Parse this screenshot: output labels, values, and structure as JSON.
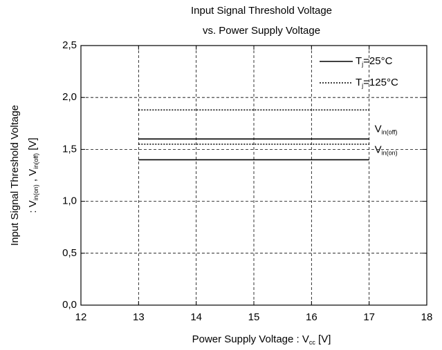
{
  "chart_data": {
    "type": "line",
    "title": [
      "Input Signal Threshold Voltage",
      "vs. Power Supply Voltage"
    ],
    "xlabel": [
      "Power Supply Voltage : V",
      "cc",
      " [V]"
    ],
    "ylabel": [
      "Input Signal Threshold Voltage",
      [
        ": V",
        "in(on)",
        " , V",
        "in(off)",
        " [V]"
      ]
    ],
    "x": [
      13,
      17
    ],
    "series": [
      {
        "name": [
          "T",
          "j",
          "=25°C"
        ],
        "color": "#000000",
        "linestyle": "solid",
        "lines": [
          {
            "values": [
              1.4,
              1.4
            ]
          },
          {
            "values": [
              1.6,
              1.6
            ]
          }
        ]
      },
      {
        "name": [
          "T",
          "j",
          "=125°C"
        ],
        "color": "#000000",
        "linestyle": "dotted",
        "lines": [
          {
            "values": [
              1.55,
              1.55
            ]
          },
          {
            "values": [
              1.88,
              1.88
            ]
          }
        ]
      }
    ],
    "annotations": [
      [
        "V",
        "in(off)"
      ],
      [
        "V",
        "in(on)"
      ]
    ],
    "xlim": [
      12,
      18
    ],
    "xticks": [
      12,
      13,
      14,
      15,
      16,
      17,
      18
    ],
    "ylim": [
      0,
      2.5
    ],
    "yticks": [
      {
        "value": 0,
        "label": "0,0"
      },
      {
        "value": 0.5,
        "label": "0,5"
      },
      {
        "value": 1,
        "label": "1,0"
      },
      {
        "value": 1.5,
        "label": "1,5"
      },
      {
        "value": 2,
        "label": "2,0"
      },
      {
        "value": 2.5,
        "label": "2,5"
      }
    ],
    "grid": true,
    "legend": "upper right"
  }
}
